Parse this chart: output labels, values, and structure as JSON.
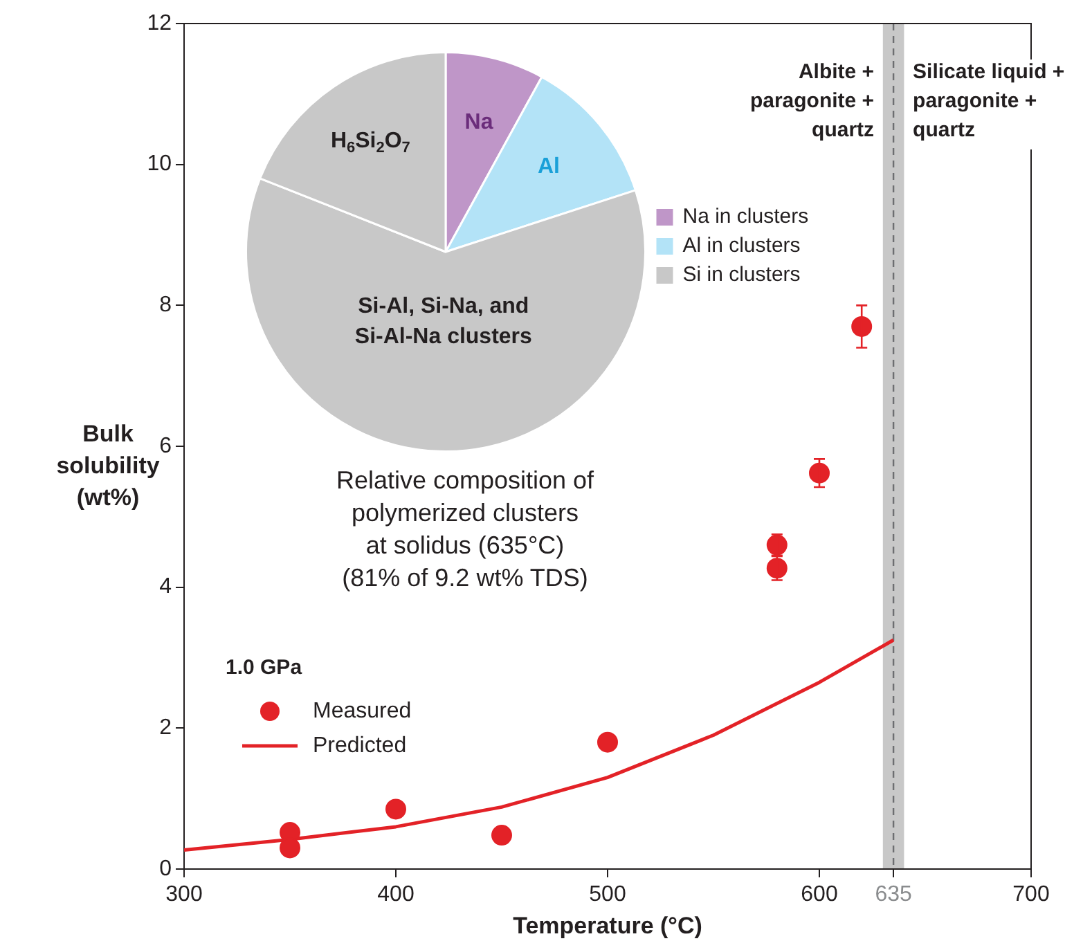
{
  "chart_data": [
    {
      "type": "scatter",
      "xlabel": "Temperature (°C)",
      "ylabel": "Bulk solubility (wt%)",
      "xlim": [
        300,
        700
      ],
      "xticks": [
        300,
        400,
        500,
        600,
        635,
        700
      ],
      "ylim": [
        0,
        12
      ],
      "yticks": [
        0,
        2,
        4,
        6,
        8,
        10,
        12
      ],
      "legend": "bottom left",
      "legend_title": "1.0 GPa",
      "bands": [
        {
          "axis": "x",
          "from": 630,
          "to": 640,
          "color": "#c8c8c8"
        }
      ],
      "ref_lines": [
        {
          "axis": "x",
          "value": 635,
          "color": "#6d6e71",
          "line_style": "dashed"
        }
      ],
      "annotations": [
        "Albite + paragonite + quartz",
        "Silicate liquid + paragonite + quartz"
      ],
      "series": [
        {
          "name": "Measured",
          "type": "scatter",
          "marker": "circle",
          "color": "#e32227",
          "x": [
            350,
            350,
            400,
            450,
            500,
            580,
            580,
            600,
            620
          ],
          "values": [
            0.52,
            0.3,
            0.85,
            0.48,
            1.8,
            4.6,
            4.27,
            5.62,
            7.7
          ],
          "errors": [
            null,
            null,
            null,
            null,
            null,
            0.15,
            0.17,
            0.2,
            0.3
          ]
        },
        {
          "name": "Predicted",
          "type": "line",
          "color": "#e32227",
          "x": [
            300,
            350,
            400,
            450,
            500,
            550,
            600,
            635
          ],
          "values": [
            0.27,
            0.42,
            0.6,
            0.88,
            1.3,
            1.9,
            2.65,
            3.25
          ]
        }
      ]
    },
    {
      "type": "pie",
      "categories": [
        "Na",
        "Al",
        "Si-Al, Si-Na, and Si-Al-Na clusters",
        "H$_{6}$Si$_{2}$O$_{7}$"
      ],
      "values": [
        8,
        12,
        61,
        19
      ],
      "colors": [
        "#bf96c8",
        "#b3e3f7",
        "#c8c8c8",
        "#c8c8c8"
      ],
      "annotations": [
        "Na in clusters",
        "Al in clusters",
        "Si in clusters",
        "Relative composition of\npolymerized clusters\nat solidus (635°C)\n(81% of 9.2 wt% TDS)"
      ]
    }
  ]
}
